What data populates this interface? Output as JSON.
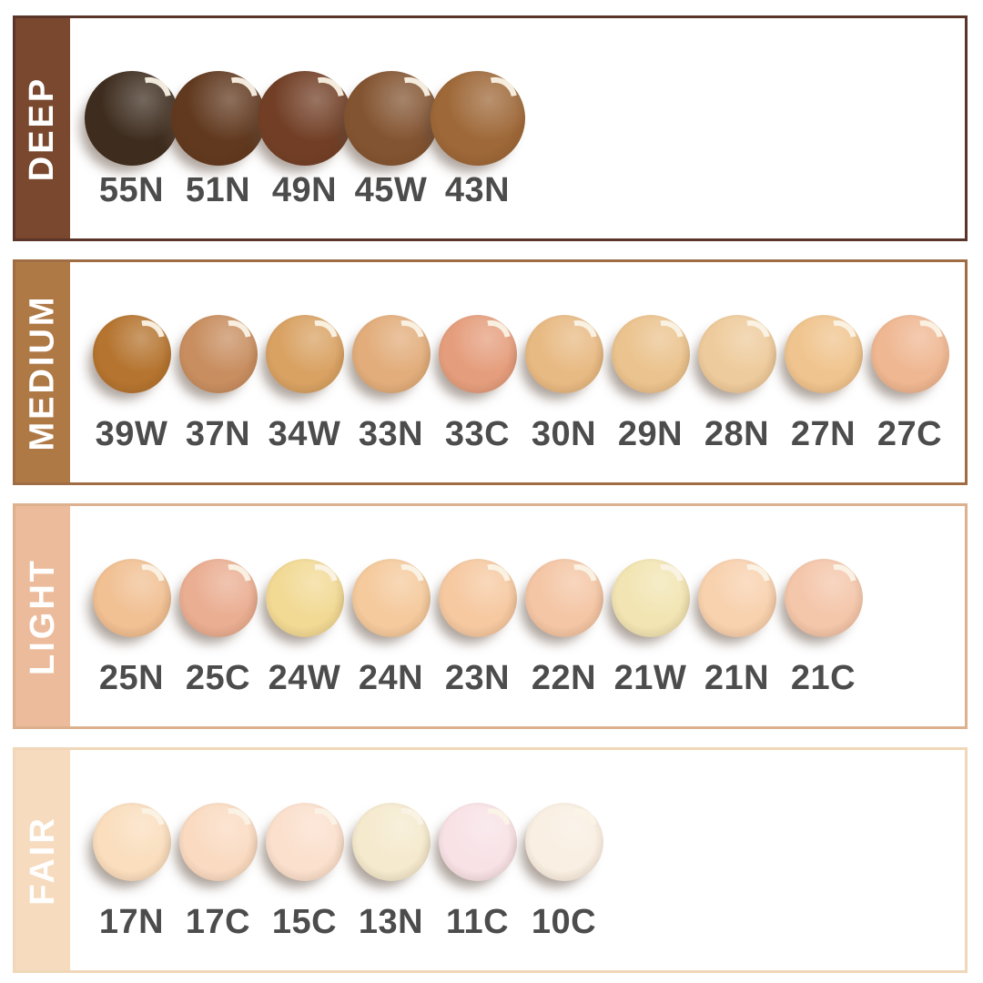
{
  "page": {
    "background": "#FFFFFF",
    "code_text_color": "#4C4C4C",
    "sidebar_text_color": "#FFFFFF"
  },
  "rows": [
    {
      "label": "DEEP",
      "fill": "#79482E",
      "border": "#5B3529",
      "swatches": [
        {
          "code": "55N",
          "color": "#3E2D1F"
        },
        {
          "code": "51N",
          "color": "#61391F"
        },
        {
          "code": "49N",
          "color": "#723F26"
        },
        {
          "code": "45W",
          "color": "#835431"
        },
        {
          "code": "43N",
          "color": "#9E6838"
        }
      ]
    },
    {
      "label": "MEDIUM",
      "fill": "#AF7946",
      "border": "#A06C44",
      "swatches": [
        {
          "code": "39W",
          "color": "#B5742F"
        },
        {
          "code": "37N",
          "color": "#C88E60"
        },
        {
          "code": "34W",
          "color": "#D9A263"
        },
        {
          "code": "33N",
          "color": "#E2AD7B"
        },
        {
          "code": "33C",
          "color": "#E59E7D"
        },
        {
          "code": "30N",
          "color": "#E8BA83"
        },
        {
          "code": "29N",
          "color": "#EBC38E"
        },
        {
          "code": "28N",
          "color": "#EECB9C"
        },
        {
          "code": "27N",
          "color": "#F0C48E"
        },
        {
          "code": "27C",
          "color": "#EFB792"
        }
      ]
    },
    {
      "label": "LIGHT",
      "fill": "#ECBB9B",
      "border": "#DDB18E",
      "swatches": [
        {
          "code": "25N",
          "color": "#F1C093"
        },
        {
          "code": "25C",
          "color": "#EAAE92"
        },
        {
          "code": "24W",
          "color": "#F2DA95"
        },
        {
          "code": "24N",
          "color": "#F5CA9D"
        },
        {
          "code": "23N",
          "color": "#F6C9A1"
        },
        {
          "code": "22N",
          "color": "#F4C6A5"
        },
        {
          "code": "21W",
          "color": "#F2E5B3"
        },
        {
          "code": "21N",
          "color": "#F8D1AE"
        },
        {
          "code": "21C",
          "color": "#F4C6AA"
        }
      ]
    },
    {
      "label": "FAIR",
      "fill": "#F6DBBE",
      "border": "#F0D7B9",
      "swatches": [
        {
          "code": "17N",
          "color": "#FADEBE"
        },
        {
          "code": "17C",
          "color": "#FADBC2"
        },
        {
          "code": "15C",
          "color": "#FBE0CD"
        },
        {
          "code": "13N",
          "color": "#F5EACE"
        },
        {
          "code": "11C",
          "color": "#F8E2E6"
        },
        {
          "code": "10C",
          "color": "#F9EFE2"
        }
      ]
    }
  ]
}
